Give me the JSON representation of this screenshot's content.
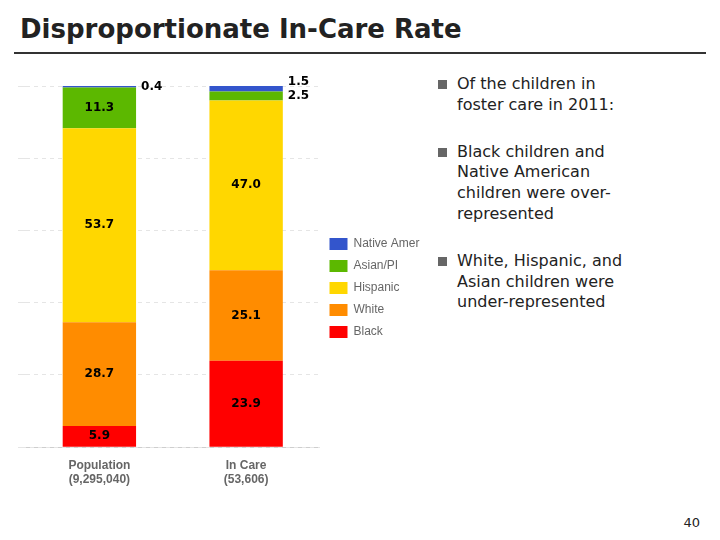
{
  "chart_data": {
    "type": "bar",
    "stacked": true,
    "title": "Disproportionate In-Care Rate",
    "categories": [
      "Population\n(9,295,040)",
      "In Care\n(53,606)"
    ],
    "series": [
      {
        "name": "Black",
        "color": "#FF0000",
        "values": [
          5.9,
          23.9
        ]
      },
      {
        "name": "White",
        "color": "#FF8C00",
        "values": [
          28.7,
          25.1
        ]
      },
      {
        "name": "Hispanic",
        "color": "#FFD700",
        "values": [
          53.7,
          47.0
        ],
        "value_labels": [
          "53.7",
          "47.0"
        ]
      },
      {
        "name": "Asian/PI",
        "color": "#5CB800",
        "values": [
          11.3,
          2.5
        ]
      },
      {
        "name": "Native American",
        "color": "#3355CC",
        "values": [
          0.4,
          1.5
        ]
      }
    ],
    "ylim": [
      0,
      100
    ],
    "yticks": [
      0,
      20,
      40,
      60,
      80,
      100
    ],
    "grid": true,
    "legend": "right",
    "data_labels": true,
    "tick_labels": "x",
    "annotations": [
      "Of the children in\nfoster care in 2011:",
      "Black children and\nNative American\nchildren were over-\nrepresented",
      "White, Hispanic, and\nAsian children were\nunder-represented",
      "40"
    ]
  }
}
